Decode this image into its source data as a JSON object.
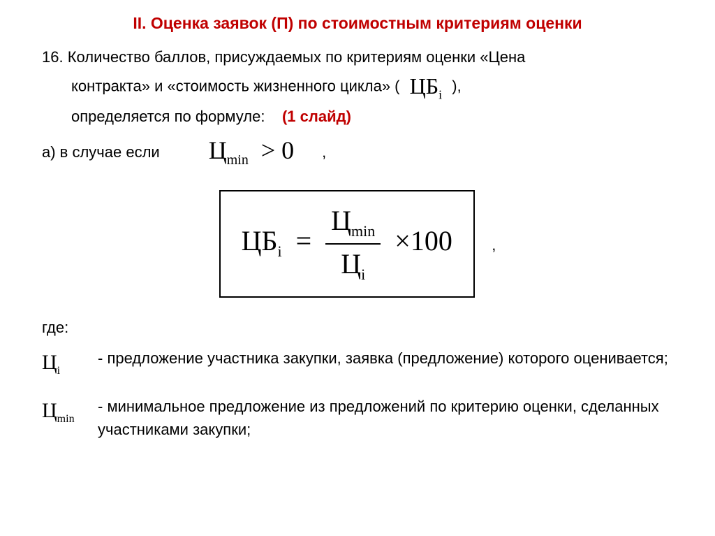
{
  "title": "II. Оценка заявок (П) по стоимостным критериям оценки",
  "p16_prefix": "16. Количество баллов, присуждаемых по критериям оценки «Цена",
  "p16_line2a": "контракта» и «стоимость жизненного цикла» (",
  "p16_line2b": "),",
  "p16_line3a": "определяется по формуле:",
  "p16_slide_ref": "(1 слайд)",
  "case_a_label": "а) в случае если",
  "cond_sym": "Ц",
  "cond_sub": "min",
  "cond_op": "> 0",
  "formula_lhs_sym": "ЦБ",
  "formula_lhs_sub": "i",
  "formula_eq": "=",
  "formula_num_sym": "Ц",
  "formula_num_sub": "min",
  "formula_den_sym": "Ц",
  "formula_den_sub": "i",
  "formula_tail": "×100",
  "where": "где:",
  "def1_sym": "Ц",
  "def1_sub": "i",
  "def1_txt": "- предложение участника закупки, заявка (предложение) которого оценивается;",
  "def2_sym": "Ц",
  "def2_sub": "min",
  "def2_txt": "- минимальное предложение из предложений по критерию оценки, сделанных участниками закупки;",
  "comma": ",",
  "colors": {
    "title": "#c00000",
    "text": "#000000",
    "background": "#ffffff",
    "box_border": "#000000"
  },
  "fonts": {
    "body": "Arial",
    "math": "Times New Roman",
    "title_size_pt": 23,
    "body_size_pt": 22,
    "formula_size_pt": 40
  }
}
